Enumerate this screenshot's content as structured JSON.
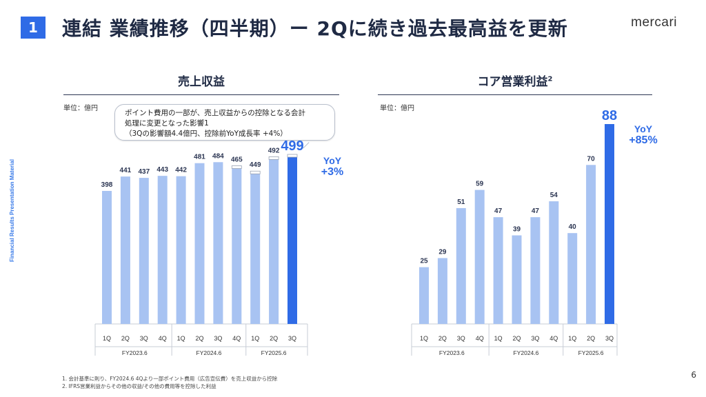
{
  "header": {
    "section_number": "1",
    "title": "連結 業績推移（四半期）ー 2Qに続き過去最高益を更新",
    "logo": "mercari"
  },
  "side_label": "Financial Results Presentation Material",
  "page_number": "6",
  "colors": {
    "accent": "#2f6be6",
    "bar_light": "#a8c3f2",
    "bar_dark": "#2f6be6"
  },
  "callout": {
    "line1": "ポイント費用の一部が、売上収益からの控除となる会計",
    "line2": "処理に変更となった影響1",
    "line3": "（3Qの影響額4.4億円、控除前YoY成長率 +4%）"
  },
  "footnotes": [
    "1. 会計基準に則り、FY2024.6 4Qより一部ポイント費用（広告宣伝費）を売上収益から控除",
    "2. IFRS営業利益からその他の収益/その他の費用等を控除した利益"
  ],
  "chart_data": [
    {
      "type": "bar",
      "title": "売上収益",
      "unit_label": "単位：億円",
      "categories": [
        "1Q",
        "2Q",
        "3Q",
        "4Q",
        "1Q",
        "2Q",
        "3Q",
        "4Q",
        "1Q",
        "2Q",
        "3Q"
      ],
      "fiscal_years": [
        "FY2023.6",
        "FY2024.6",
        "FY2025.6"
      ],
      "values": [
        398,
        441,
        437,
        443,
        442,
        481,
        484,
        465,
        449,
        492,
        499
      ],
      "deducted_points": [
        0,
        0,
        0,
        0,
        0,
        0,
        0,
        4.4,
        4.4,
        4.4,
        4.4
      ],
      "highlight_index": 10,
      "yoy_label": "YoY",
      "yoy_value": "+3%",
      "ylim": [
        0,
        540
      ]
    },
    {
      "type": "bar",
      "title": "コア営業利益",
      "title_note": "2",
      "unit_label": "単位：億円",
      "categories": [
        "1Q",
        "2Q",
        "3Q",
        "4Q",
        "1Q",
        "2Q",
        "3Q",
        "4Q",
        "1Q",
        "2Q",
        "3Q"
      ],
      "fiscal_years": [
        "FY2023.6",
        "FY2024.6",
        "FY2025.6"
      ],
      "values": [
        25,
        29,
        51,
        59,
        47,
        39,
        47,
        54,
        40,
        70,
        88
      ],
      "highlight_index": 10,
      "yoy_label": "YoY",
      "yoy_value": "+85%",
      "ylim": [
        0,
        95
      ]
    }
  ]
}
